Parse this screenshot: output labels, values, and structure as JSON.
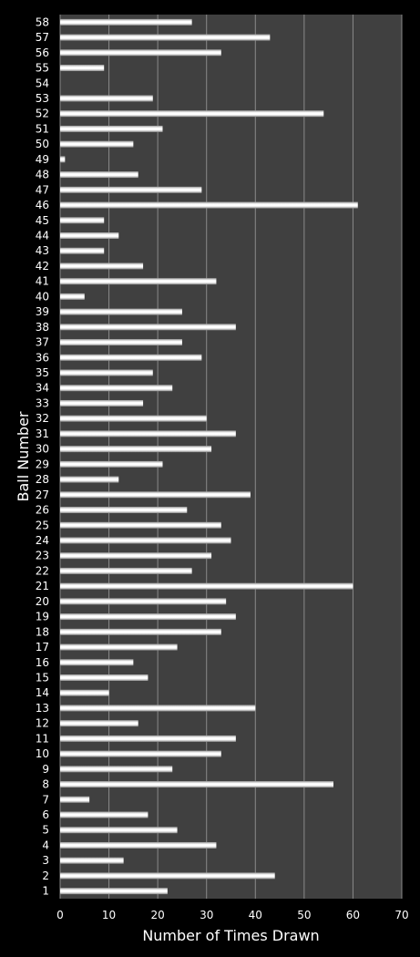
{
  "chart_data": {
    "type": "bar",
    "orientation": "horizontal",
    "xlabel": "Number of Times Drawn",
    "ylabel": "Ball Number",
    "xlim": [
      0,
      70
    ],
    "x_ticks": [
      "0",
      "10",
      "20",
      "30",
      "40",
      "50",
      "60",
      "70"
    ],
    "grid": "vertical",
    "colors": {
      "background": "#000000",
      "plot": "#404040",
      "bar": "#f2f2f2",
      "grid": "#8a8a8a",
      "text": "#ffffff"
    },
    "categories": [
      "1",
      "2",
      "3",
      "4",
      "5",
      "6",
      "7",
      "8",
      "9",
      "10",
      "11",
      "12",
      "13",
      "14",
      "15",
      "16",
      "17",
      "18",
      "19",
      "20",
      "21",
      "22",
      "23",
      "24",
      "25",
      "26",
      "27",
      "28",
      "29",
      "30",
      "31",
      "32",
      "33",
      "34",
      "35",
      "36",
      "37",
      "38",
      "39",
      "40",
      "41",
      "42",
      "43",
      "44",
      "45",
      "46",
      "47",
      "48",
      "49",
      "50",
      "51",
      "52",
      "53",
      "54",
      "55",
      "56",
      "57",
      "58"
    ],
    "values": [
      22,
      44,
      13,
      32,
      24,
      18,
      6,
      56,
      23,
      33,
      36,
      16,
      40,
      10,
      18,
      15,
      24,
      33,
      36,
      34,
      60,
      27,
      31,
      35,
      33,
      26,
      39,
      12,
      21,
      31,
      36,
      30,
      17,
      23,
      19,
      29,
      25,
      36,
      25,
      5,
      32,
      17,
      9,
      12,
      9,
      61,
      29,
      16,
      1,
      15,
      21,
      54,
      19,
      0,
      9,
      33,
      43,
      27
    ]
  }
}
